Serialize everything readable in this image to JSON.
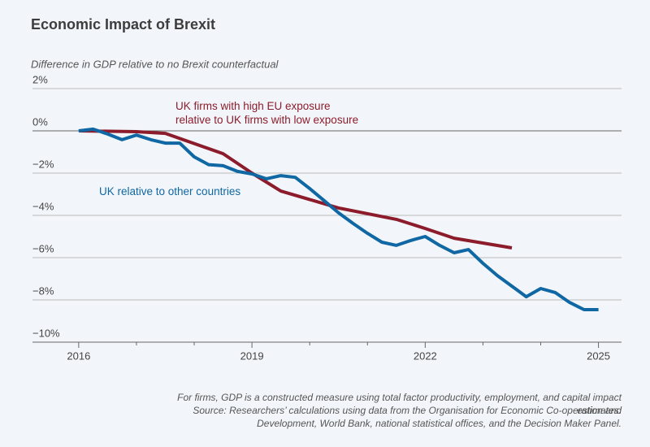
{
  "chart_data": {
    "type": "line",
    "title": "Economic Impact of Brexit",
    "subtitle": "Difference in GDP relative to no Brexit counterfactual",
    "note": "For firms, GDP is a constructed measure using total factor productivity, employment, and capital impact estimates.",
    "source": "Source: Researchers’ calculations using data from the Organisation for Economic Co-operation and Development, World Bank, national statistical offices, and the Decision Maker Panel.",
    "xlim": [
      2015.2,
      2025.4
    ],
    "xticks": [
      2016,
      2019,
      2022,
      2025
    ],
    "xminor_ticks": [
      2017,
      2018,
      2020,
      2021,
      2023,
      2024
    ],
    "ylim": [
      -10,
      2
    ],
    "yticks": [
      {
        "value": -10,
        "label": "−10%"
      },
      {
        "value": -8,
        "label": "−8%"
      },
      {
        "value": -6,
        "label": "−6%"
      },
      {
        "value": -4,
        "label": "−4%"
      },
      {
        "value": -2,
        "label": "−2%"
      },
      {
        "value": 0,
        "label": "0%"
      },
      {
        "value": 2,
        "label": "2%"
      }
    ],
    "grid": true,
    "series": [
      {
        "name": "UK relative to other countries",
        "color": "#0f67a4",
        "x": [
          2016,
          2016.25,
          2016.5,
          2016.75,
          2017,
          2017.25,
          2017.5,
          2017.75,
          2018,
          2018.25,
          2018.5,
          2018.75,
          2019,
          2019.25,
          2019.5,
          2019.75,
          2020,
          2020.25,
          2020.5,
          2020.75,
          2021,
          2021.25,
          2021.5,
          2021.75,
          2022,
          2022.25,
          2022.5,
          2022.75,
          2023,
          2023.25,
          2023.5,
          2023.75,
          2024,
          2024.25,
          2024.5,
          2024.75,
          2025
        ],
        "values": [
          0,
          0.08,
          -0.15,
          -0.42,
          -0.2,
          -0.42,
          -0.58,
          -0.58,
          -1.23,
          -1.6,
          -1.65,
          -1.92,
          -2.04,
          -2.27,
          -2.12,
          -2.2,
          -2.73,
          -3.3,
          -3.88,
          -4.38,
          -4.85,
          -5.27,
          -5.42,
          -5.19,
          -5.0,
          -5.42,
          -5.77,
          -5.62,
          -6.27,
          -6.85,
          -7.35,
          -7.85,
          -7.46,
          -7.65,
          -8.12,
          -8.46,
          -8.46
        ]
      },
      {
        "name": "UK firms with high EU exposure relative to UK firms with low exposure",
        "color": "#8c1c2b",
        "x": [
          2016,
          2017,
          2017.5,
          2018,
          2018.5,
          2019,
          2019.5,
          2020.5,
          2021.5,
          2022,
          2022.5,
          2023.5
        ],
        "values": [
          0,
          -0.04,
          -0.12,
          -0.6,
          -1.08,
          -2.0,
          -2.85,
          -3.65,
          -4.19,
          -4.62,
          -5.08,
          -5.54
        ]
      }
    ]
  }
}
